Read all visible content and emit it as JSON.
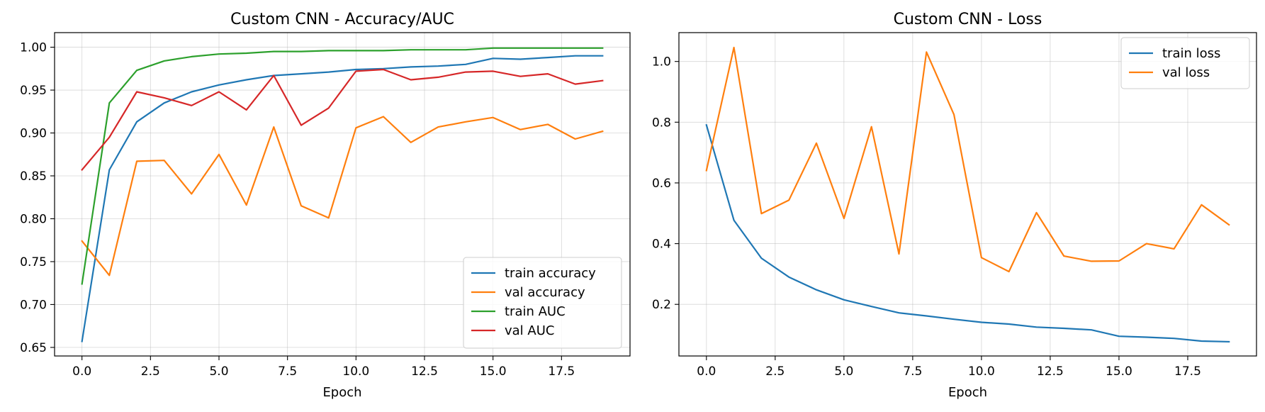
{
  "chart_data": [
    {
      "type": "line",
      "title": "Custom CNN - Accuracy/AUC",
      "xlabel": "Epoch",
      "ylabel": "",
      "xlim": [
        -1.0,
        20.0
      ],
      "ylim": [
        0.64,
        1.017
      ],
      "xticks": [
        0.0,
        2.5,
        5.0,
        7.5,
        10.0,
        12.5,
        15.0,
        17.5
      ],
      "xtick_labels": [
        "0.0",
        "2.5",
        "5.0",
        "7.5",
        "10.0",
        "12.5",
        "15.0",
        "17.5"
      ],
      "yticks": [
        0.65,
        0.7,
        0.75,
        0.8,
        0.85,
        0.9,
        0.95,
        1.0
      ],
      "ytick_labels": [
        "0.65",
        "0.70",
        "0.75",
        "0.80",
        "0.85",
        "0.90",
        "0.95",
        "1.00"
      ],
      "grid": true,
      "legend_position": "lower-right",
      "x": [
        0,
        1,
        2,
        3,
        4,
        5,
        6,
        7,
        8,
        9,
        10,
        11,
        12,
        13,
        14,
        15,
        16,
        17,
        18,
        19
      ],
      "series": [
        {
          "name": "train accuracy",
          "color": "#1f77b4",
          "values": [
            0.657,
            0.857,
            0.913,
            0.935,
            0.948,
            0.956,
            0.962,
            0.967,
            0.969,
            0.971,
            0.974,
            0.975,
            0.977,
            0.978,
            0.98,
            0.987,
            0.986,
            0.988,
            0.99,
            0.99
          ]
        },
        {
          "name": "val accuracy",
          "color": "#ff7f0e",
          "values": [
            0.774,
            0.734,
            0.867,
            0.868,
            0.829,
            0.875,
            0.816,
            0.907,
            0.815,
            0.801,
            0.906,
            0.919,
            0.889,
            0.907,
            0.913,
            0.918,
            0.904,
            0.91,
            0.893,
            0.902
          ]
        },
        {
          "name": "train AUC",
          "color": "#2ca02c",
          "values": [
            0.724,
            0.935,
            0.973,
            0.984,
            0.989,
            0.992,
            0.993,
            0.995,
            0.995,
            0.996,
            0.996,
            0.996,
            0.997,
            0.997,
            0.997,
            0.999,
            0.999,
            0.999,
            0.999,
            0.999
          ]
        },
        {
          "name": "val AUC",
          "color": "#d62728",
          "values": [
            0.857,
            0.895,
            0.948,
            0.941,
            0.932,
            0.948,
            0.927,
            0.967,
            0.909,
            0.929,
            0.972,
            0.974,
            0.962,
            0.965,
            0.971,
            0.972,
            0.966,
            0.969,
            0.957,
            0.961
          ]
        }
      ]
    },
    {
      "type": "line",
      "title": "Custom CNN - Loss",
      "xlabel": "Epoch",
      "ylabel": "",
      "xlim": [
        -1.0,
        20.0
      ],
      "ylim": [
        0.03,
        1.095
      ],
      "xticks": [
        0.0,
        2.5,
        5.0,
        7.5,
        10.0,
        12.5,
        15.0,
        17.5
      ],
      "xtick_labels": [
        "0.0",
        "2.5",
        "5.0",
        "7.5",
        "10.0",
        "12.5",
        "15.0",
        "17.5"
      ],
      "yticks": [
        0.2,
        0.4,
        0.6,
        0.8,
        1.0
      ],
      "ytick_labels": [
        "0.2",
        "0.4",
        "0.6",
        "0.8",
        "1.0"
      ],
      "grid": true,
      "legend_position": "upper-right",
      "x": [
        0,
        1,
        2,
        3,
        4,
        5,
        6,
        7,
        8,
        9,
        10,
        11,
        12,
        13,
        14,
        15,
        16,
        17,
        18,
        19
      ],
      "series": [
        {
          "name": "train loss",
          "color": "#1f77b4",
          "values": [
            0.791,
            0.477,
            0.352,
            0.29,
            0.248,
            0.215,
            0.193,
            0.172,
            0.162,
            0.151,
            0.141,
            0.135,
            0.125,
            0.121,
            0.116,
            0.095,
            0.092,
            0.088,
            0.079,
            0.077
          ]
        },
        {
          "name": "val loss",
          "color": "#ff7f0e",
          "values": [
            0.641,
            1.046,
            0.499,
            0.543,
            0.731,
            0.483,
            0.785,
            0.366,
            1.031,
            0.825,
            0.354,
            0.308,
            0.502,
            0.359,
            0.342,
            0.343,
            0.4,
            0.383,
            0.528,
            0.462
          ]
        }
      ]
    }
  ]
}
